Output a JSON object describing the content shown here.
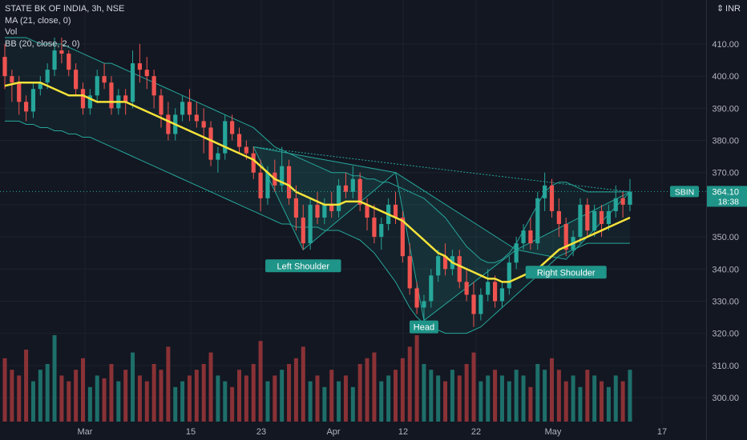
{
  "legend": {
    "symbol": "STATE BK OF INDIA, 3h, NSE",
    "ma": "MA (21, close, 0)",
    "vol": "Vol",
    "bb": "BB (20, close, 2, 0)"
  },
  "currency": "INR",
  "colors": {
    "up": "#26a69a",
    "down": "#ef5350",
    "vol_up": "#1e6f6a",
    "vol_down": "#8a3236",
    "ma": "#f5e33b",
    "bb": "#26a69a",
    "label_bg": "#1f9488"
  },
  "price_tag": {
    "symbol": "SBIN",
    "price": "364.10",
    "timer": "18:38"
  },
  "chart_data": {
    "type": "candlestick",
    "y_axis": {
      "ticks": [
        300,
        310,
        320,
        330,
        340,
        350,
        360,
        370,
        380,
        390,
        400,
        410
      ]
    },
    "y_tick_labels": [
      "300.00",
      "310.00",
      "320.00",
      "330.00",
      "340.00",
      "350.00",
      "",
      "370.00",
      "380.00",
      "390.00",
      "400.00",
      "410.00"
    ],
    "x_tick_labels": [
      "Mar",
      "15",
      "23",
      "Apr",
      "12",
      "22",
      "May",
      "17"
    ],
    "candles": [
      [
        406,
        410,
        396,
        400
      ],
      [
        400,
        402,
        392,
        398
      ],
      [
        398,
        400,
        388,
        392
      ],
      [
        392,
        394,
        386,
        389
      ],
      [
        389,
        398,
        387,
        396
      ],
      [
        396,
        400,
        394,
        398
      ],
      [
        398,
        404,
        396,
        402
      ],
      [
        402,
        412,
        400,
        408
      ],
      [
        408,
        412,
        404,
        407
      ],
      [
        407,
        408,
        400,
        402
      ],
      [
        402,
        404,
        394,
        396
      ],
      [
        396,
        398,
        388,
        390
      ],
      [
        390,
        396,
        388,
        394
      ],
      [
        394,
        402,
        392,
        400
      ],
      [
        400,
        404,
        396,
        398
      ],
      [
        398,
        400,
        388,
        390
      ],
      [
        390,
        396,
        388,
        394
      ],
      [
        394,
        396,
        388,
        392
      ],
      [
        392,
        408,
        390,
        404
      ],
      [
        404,
        410,
        398,
        402
      ],
      [
        402,
        406,
        396,
        400
      ],
      [
        400,
        402,
        390,
        394
      ],
      [
        394,
        396,
        384,
        388
      ],
      [
        388,
        392,
        380,
        382
      ],
      [
        382,
        390,
        380,
        388
      ],
      [
        388,
        394,
        386,
        392
      ],
      [
        392,
        396,
        386,
        388
      ],
      [
        388,
        392,
        384,
        386
      ],
      [
        386,
        390,
        376,
        384
      ],
      [
        384,
        386,
        372,
        374
      ],
      [
        374,
        378,
        370,
        376
      ],
      [
        376,
        388,
        374,
        386
      ],
      [
        386,
        388,
        380,
        382
      ],
      [
        382,
        384,
        376,
        378
      ],
      [
        378,
        380,
        374,
        376
      ],
      [
        376,
        378,
        368,
        370
      ],
      [
        370,
        374,
        358,
        362
      ],
      [
        362,
        372,
        360,
        370
      ],
      [
        370,
        374,
        364,
        366
      ],
      [
        366,
        378,
        364,
        372
      ],
      [
        372,
        374,
        360,
        362
      ],
      [
        362,
        366,
        352,
        356
      ],
      [
        356,
        360,
        346,
        348
      ],
      [
        348,
        362,
        346,
        360
      ],
      [
        360,
        364,
        354,
        356
      ],
      [
        356,
        362,
        354,
        360
      ],
      [
        360,
        364,
        356,
        358
      ],
      [
        358,
        368,
        356,
        366
      ],
      [
        366,
        370,
        362,
        364
      ],
      [
        364,
        372,
        362,
        368
      ],
      [
        368,
        370,
        358,
        360
      ],
      [
        360,
        362,
        352,
        356
      ],
      [
        356,
        360,
        348,
        350
      ],
      [
        350,
        356,
        346,
        354
      ],
      [
        354,
        362,
        352,
        360
      ],
      [
        360,
        364,
        354,
        356
      ],
      [
        356,
        358,
        342,
        344
      ],
      [
        344,
        348,
        332,
        334
      ],
      [
        334,
        336,
        326,
        328
      ],
      [
        328,
        332,
        324,
        330
      ],
      [
        330,
        340,
        328,
        338
      ],
      [
        338,
        346,
        336,
        344
      ],
      [
        344,
        348,
        338,
        340
      ],
      [
        340,
        346,
        338,
        344
      ],
      [
        344,
        346,
        334,
        336
      ],
      [
        336,
        340,
        330,
        332
      ],
      [
        332,
        336,
        322,
        326
      ],
      [
        326,
        334,
        324,
        332
      ],
      [
        332,
        340,
        330,
        336
      ],
      [
        336,
        338,
        328,
        330
      ],
      [
        330,
        336,
        328,
        334
      ],
      [
        334,
        344,
        332,
        342
      ],
      [
        342,
        350,
        340,
        348
      ],
      [
        348,
        354,
        346,
        352
      ],
      [
        352,
        356,
        346,
        348
      ],
      [
        348,
        364,
        346,
        362
      ],
      [
        362,
        370,
        358,
        366
      ],
      [
        366,
        368,
        356,
        358
      ],
      [
        358,
        362,
        350,
        354
      ],
      [
        354,
        356,
        344,
        346
      ],
      [
        346,
        352,
        344,
        350
      ],
      [
        350,
        362,
        348,
        360
      ],
      [
        360,
        362,
        350,
        352
      ],
      [
        352,
        360,
        350,
        358
      ],
      [
        358,
        360,
        350,
        354
      ],
      [
        354,
        360,
        352,
        358
      ],
      [
        358,
        366,
        356,
        362
      ],
      [
        362,
        364,
        356,
        360
      ],
      [
        360,
        368,
        358,
        364
      ]
    ],
    "ma_21": [
      397,
      397.5,
      398,
      398,
      398,
      398,
      397,
      396,
      395,
      394,
      394,
      394,
      393,
      392,
      392,
      392,
      392,
      392,
      391,
      390,
      389,
      388,
      387,
      386,
      385,
      384,
      383,
      382,
      381,
      380,
      379,
      378,
      377,
      376,
      375,
      374,
      372,
      370,
      368,
      367,
      366,
      364,
      363,
      362,
      361,
      360,
      360,
      360,
      361,
      361,
      361,
      360,
      359,
      358,
      357,
      356,
      355,
      353,
      351,
      349,
      347,
      345,
      344,
      342,
      341,
      340,
      339,
      338,
      337,
      337,
      336,
      336,
      337,
      338,
      339,
      340,
      342,
      344,
      346,
      347,
      348,
      349,
      350,
      351,
      352,
      353,
      354,
      355,
      356
    ],
    "bb_upper": [
      412,
      412,
      412,
      412,
      411,
      410,
      410,
      410,
      410,
      409,
      408,
      407,
      406,
      405,
      404,
      404,
      403,
      402,
      401,
      400,
      399,
      398,
      397,
      396,
      395,
      394,
      393,
      392,
      391,
      390,
      389,
      388,
      387,
      386,
      385,
      384,
      382,
      380,
      378,
      377,
      376,
      375,
      374,
      373,
      372,
      371,
      370,
      370,
      370,
      369,
      369,
      368,
      368,
      367,
      367,
      366,
      365,
      364,
      363,
      362,
      360,
      358,
      356,
      353,
      350,
      347,
      345,
      343,
      342,
      342,
      343,
      345,
      348,
      352,
      356,
      360,
      364,
      366,
      367,
      367,
      366,
      365,
      364,
      364,
      364,
      364,
      364,
      364,
      364
    ],
    "bb_lower": [
      386,
      386,
      386,
      385,
      385,
      384,
      384,
      383,
      383,
      382,
      382,
      381,
      381,
      380,
      379,
      378,
      377,
      376,
      375,
      374,
      373,
      372,
      371,
      370,
      369,
      368,
      367,
      366,
      365,
      364,
      363,
      362,
      361,
      360,
      359,
      358,
      357,
      356,
      355,
      354,
      354,
      353,
      353,
      353,
      353,
      352,
      352,
      352,
      351,
      350,
      349,
      347,
      345,
      342,
      339,
      336,
      332,
      328,
      325,
      323,
      322,
      321,
      320,
      320,
      320,
      320,
      321,
      322,
      324,
      326,
      328,
      330,
      332,
      334,
      336,
      338,
      340,
      342,
      344,
      345,
      346,
      347,
      348,
      348,
      348,
      348,
      348,
      348,
      348
    ],
    "volume": [
      22,
      18,
      16,
      25,
      14,
      18,
      20,
      30,
      16,
      14,
      18,
      22,
      12,
      16,
      15,
      20,
      14,
      18,
      24,
      16,
      14,
      20,
      18,
      26,
      12,
      14,
      16,
      18,
      20,
      24,
      16,
      14,
      12,
      18,
      16,
      20,
      28,
      14,
      16,
      18,
      20,
      22,
      26,
      14,
      16,
      12,
      18,
      14,
      16,
      12,
      20,
      22,
      24,
      14,
      16,
      18,
      22,
      26,
      30,
      20,
      18,
      16,
      14,
      18,
      16,
      20,
      24,
      14,
      16,
      18,
      16,
      14,
      18,
      16,
      12,
      20,
      18,
      22,
      18,
      14,
      16,
      12,
      18,
      16,
      14,
      12,
      16,
      14,
      18
    ],
    "pattern_labels": [
      {
        "text": "Left Shoulder",
        "index": 42,
        "price": 341
      },
      {
        "text": "Head",
        "index": 59,
        "price": 322
      },
      {
        "text": "Right Shoulder",
        "index": 79,
        "price": 339
      }
    ],
    "pattern_triangles": [
      [
        [
          35,
          378
        ],
        [
          42,
          346
        ],
        [
          55,
          370
        ]
      ],
      [
        [
          55,
          370
        ],
        [
          59,
          324
        ],
        [
          72,
          346
        ]
      ],
      [
        [
          72,
          346
        ],
        [
          79,
          343
        ],
        [
          88,
          364
        ]
      ]
    ],
    "neckline": [
      [
        35,
        378
      ],
      [
        88,
        364
      ]
    ],
    "last_price": 364.1
  }
}
